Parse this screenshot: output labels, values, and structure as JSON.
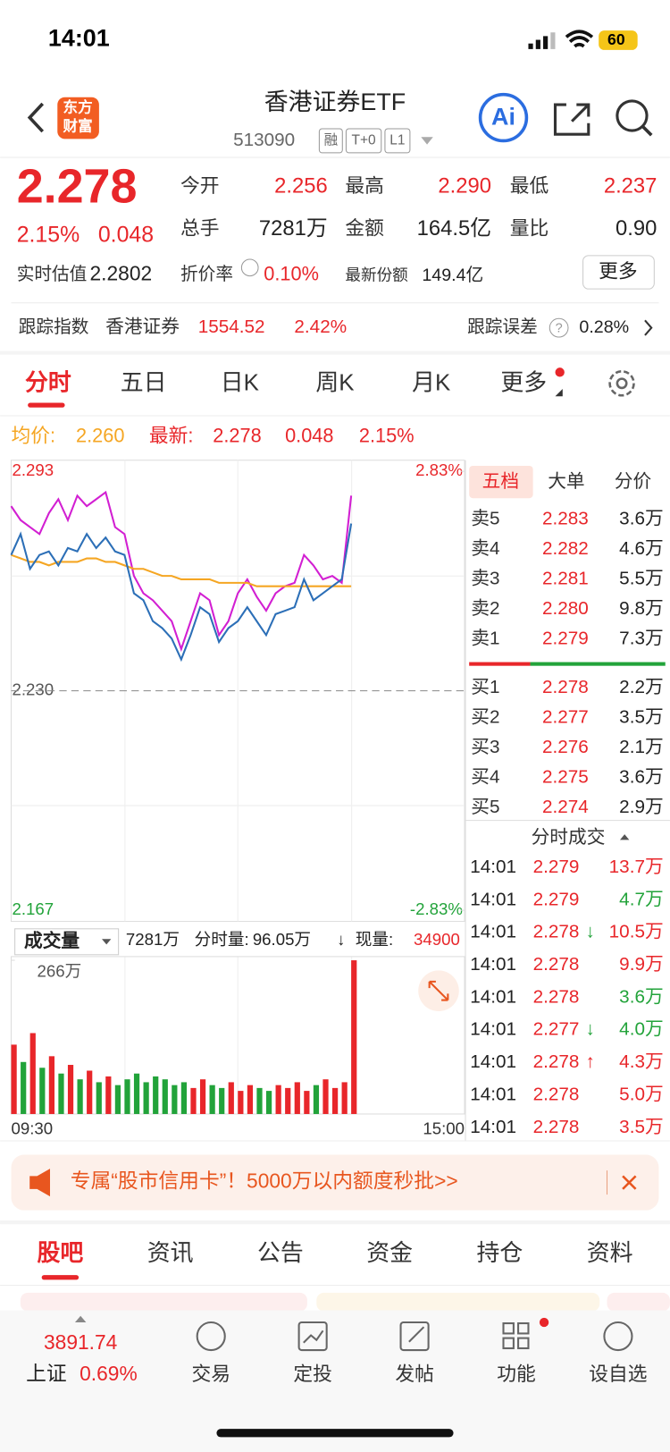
{
  "status_bar": {
    "time": "14:01",
    "battery": "60"
  },
  "header": {
    "logo": [
      "东方",
      "财富"
    ],
    "title": "香港证券ETF",
    "code": "513090",
    "badges": [
      "融",
      "T+0",
      "L1"
    ],
    "ai": "Ai"
  },
  "quote": {
    "price": "2.278",
    "change_pct": "2.15%",
    "change": "0.048",
    "fields": [
      {
        "label": "今开",
        "value": "2.256",
        "color": "#e8262a"
      },
      {
        "label": "最高",
        "value": "2.290",
        "color": "#e8262a"
      },
      {
        "label": "最低",
        "value": "2.237",
        "color": "#e8262a"
      },
      {
        "label": "总手",
        "value": "7281万",
        "color": "#222222"
      },
      {
        "label": "金额",
        "value": "164.5亿",
        "color": "#222222"
      },
      {
        "label": "量比",
        "value": "0.90",
        "color": "#222222"
      }
    ],
    "estimate_label": "实时估值",
    "estimate": "2.2802",
    "discount_label": "折价率",
    "discount": "0.10%",
    "shares_label": "最新份额",
    "shares": "149.4亿",
    "more": "更多"
  },
  "tracking": {
    "label": "跟踪指数",
    "index": "香港证券",
    "value": "1554.52",
    "pct": "2.42%",
    "error_label": "跟踪误差",
    "error_help": "?",
    "error": "0.28%"
  },
  "tabs": {
    "items": [
      "分时",
      "五日",
      "日K",
      "周K",
      "月K",
      "更多"
    ],
    "active": 0
  },
  "summary": {
    "avg_label": "均价:",
    "avg": "2.260",
    "last_label": "最新:",
    "last": "2.278",
    "change": "0.048",
    "pct": "2.15%"
  },
  "intraday": {
    "ylim": [
      2.167,
      2.293
    ],
    "yticks": [
      2.293,
      {
        "value": 2.23,
        "label": "2.230"
      },
      2.167
    ],
    "y2lim": [
      -2.83,
      2.83
    ],
    "y2ticks": [
      {
        "value": 2.83,
        "label": "2.83%"
      },
      {
        "value": -2.83,
        "label": "-2.83%"
      }
    ],
    "xlabels": [
      "09:30",
      "15:00"
    ],
    "index": {
      "color": "#d21fd2",
      "values": [
        2.283,
        2.279,
        2.277,
        2.275,
        2.281,
        2.285,
        2.279,
        2.286,
        2.283,
        2.285,
        2.287,
        2.277,
        2.275,
        2.263,
        2.258,
        2.256,
        2.253,
        2.25,
        2.242,
        2.25,
        2.258,
        2.256,
        2.246,
        2.25,
        2.258,
        2.262,
        2.257,
        2.253,
        2.258,
        2.26,
        2.261,
        2.269,
        2.266,
        2.262,
        2.263,
        2.261,
        2.286
      ]
    },
    "average": {
      "color": "#f5a623",
      "values": [
        2.269,
        2.268,
        2.267,
        2.267,
        2.266,
        2.267,
        2.267,
        2.267,
        2.268,
        2.268,
        2.267,
        2.267,
        2.266,
        2.265,
        2.265,
        2.264,
        2.263,
        2.263,
        2.262,
        2.262,
        2.262,
        2.262,
        2.261,
        2.261,
        2.261,
        2.261,
        2.26,
        2.26,
        2.26,
        2.26,
        2.26,
        2.26,
        2.26,
        2.26,
        2.26,
        2.26,
        2.26
      ]
    },
    "price": {
      "color": "#2c6fb7",
      "values": [
        2.269,
        2.275,
        2.265,
        2.269,
        2.27,
        2.266,
        2.271,
        2.27,
        2.275,
        2.271,
        2.274,
        2.27,
        2.269,
        2.258,
        2.256,
        2.25,
        2.248,
        2.245,
        2.239,
        2.246,
        2.254,
        2.252,
        2.244,
        2.248,
        2.25,
        2.254,
        2.25,
        2.246,
        2.252,
        2.253,
        2.254,
        2.262,
        2.256,
        2.258,
        2.26,
        2.262,
        2.278
      ]
    }
  },
  "volume": {
    "menu": "成交量",
    "total": "7281万",
    "minute_label": "分时量:",
    "minute": "96.05万",
    "arrow": "↓",
    "current_label": "现量:",
    "current": "34900",
    "ylim": [
      0,
      266
    ],
    "yticks": [
      {
        "value": 266,
        "label": "266万"
      }
    ],
    "values": [
      120,
      90,
      140,
      80,
      100,
      70,
      85,
      60,
      75,
      55,
      65,
      50,
      60,
      70,
      55,
      65,
      60,
      50,
      55,
      45,
      60,
      50,
      45,
      55,
      40,
      50,
      45,
      40,
      50,
      45,
      55,
      40,
      50,
      60,
      45,
      55,
      266
    ],
    "colors": [
      "#e8262a",
      "#22a33a",
      "#e8262a",
      "#22a33a",
      "#e8262a",
      "#22a33a",
      "#e8262a",
      "#22a33a",
      "#e8262a",
      "#22a33a",
      "#e8262a",
      "#22a33a",
      "#22a33a",
      "#22a33a",
      "#22a33a",
      "#22a33a",
      "#22a33a",
      "#22a33a",
      "#22a33a",
      "#e8262a",
      "#e8262a",
      "#22a33a",
      "#22a33a",
      "#e8262a",
      "#e8262a",
      "#e8262a",
      "#22a33a",
      "#22a33a",
      "#e8262a",
      "#e8262a",
      "#e8262a",
      "#e8262a",
      "#22a33a",
      "#e8262a",
      "#e8262a",
      "#e8262a",
      "#e8262a"
    ]
  },
  "order_book": {
    "tabs": [
      "五档",
      "大单",
      "分价"
    ],
    "asks": [
      {
        "label": "卖5",
        "price": "2.283",
        "volume": "3.6万"
      },
      {
        "label": "卖4",
        "price": "2.282",
        "volume": "4.6万"
      },
      {
        "label": "卖3",
        "price": "2.281",
        "volume": "5.5万"
      },
      {
        "label": "卖2",
        "price": "2.280",
        "volume": "9.8万"
      },
      {
        "label": "卖1",
        "price": "2.279",
        "volume": "7.3万"
      }
    ],
    "bids": [
      {
        "label": "买1",
        "price": "2.278",
        "volume": "2.2万"
      },
      {
        "label": "买2",
        "price": "2.277",
        "volume": "3.5万"
      },
      {
        "label": "买3",
        "price": "2.276",
        "volume": "2.1万"
      },
      {
        "label": "买4",
        "price": "2.275",
        "volume": "3.6万"
      },
      {
        "label": "买5",
        "price": "2.274",
        "volume": "2.9万"
      }
    ],
    "trades_title": "分时成交",
    "trades": [
      {
        "time": "14:01",
        "price": "2.279",
        "volume": "13.7万",
        "color": "#e8262a"
      },
      {
        "time": "14:01",
        "price": "2.279",
        "volume": "4.7万",
        "color": "#22a33a"
      },
      {
        "time": "14:01",
        "price": "2.278",
        "arrow": "↓",
        "arrow_color": "#22a33a",
        "volume": "10.5万",
        "color": "#e8262a"
      },
      {
        "time": "14:01",
        "price": "2.278",
        "volume": "9.9万",
        "color": "#e8262a"
      },
      {
        "time": "14:01",
        "price": "2.278",
        "volume": "3.6万",
        "color": "#22a33a"
      },
      {
        "time": "14:01",
        "price": "2.277",
        "arrow": "↓",
        "arrow_color": "#22a33a",
        "volume": "4.0万",
        "color": "#22a33a"
      },
      {
        "time": "14:01",
        "price": "2.278",
        "arrow": "↑",
        "arrow_color": "#e8262a",
        "volume": "4.3万",
        "color": "#e8262a"
      },
      {
        "time": "14:01",
        "price": "2.278",
        "volume": "5.0万",
        "color": "#e8262a"
      },
      {
        "time": "14:01",
        "price": "2.278",
        "volume": "3.5万",
        "color": "#e8262a"
      }
    ]
  },
  "banner": {
    "text": "专属“股市信用卡”！5000万以内额度秒批>>"
  },
  "bottom_tabs": {
    "items": [
      "股吧",
      "资讯",
      "公告",
      "资金",
      "持仓",
      "资料"
    ],
    "active": 0
  },
  "nav": {
    "index_value": "3891.74",
    "index_name": "上证",
    "index_pct": "0.69%",
    "items": [
      "交易",
      "定投",
      "发帖",
      "功能",
      "设自选"
    ]
  }
}
